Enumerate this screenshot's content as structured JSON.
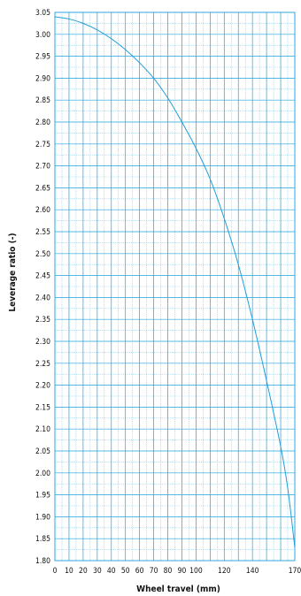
{
  "chart_data": {
    "type": "line",
    "xlabel": "Wheel travel (mm)",
    "ylabel": "Leverage ratio (-)",
    "xlim": [
      0,
      170
    ],
    "ylim": [
      1.8,
      3.05
    ],
    "x_ticks": [
      0,
      10,
      20,
      30,
      40,
      50,
      60,
      70,
      80,
      90,
      100,
      120,
      140,
      170
    ],
    "x_tick_labels": [
      "0",
      "10",
      "20",
      "30",
      "40",
      "50",
      "60",
      "70",
      "80",
      "90",
      "100",
      "120",
      "140",
      "170"
    ],
    "y_ticks": [
      1.8,
      1.85,
      1.9,
      1.95,
      2.0,
      2.05,
      2.1,
      2.15,
      2.2,
      2.25,
      2.3,
      2.35,
      2.4,
      2.45,
      2.5,
      2.55,
      2.6,
      2.65,
      2.7,
      2.75,
      2.8,
      2.85,
      2.9,
      2.95,
      3.0,
      3.05
    ],
    "y_tick_labels": [
      "1.80",
      "1.85",
      "1.90",
      "1.95",
      "2.00",
      "2.05",
      "2.10",
      "2.15",
      "2.20",
      "2.25",
      "2.30",
      "2.35",
      "2.40",
      "2.45",
      "2.50",
      "2.55",
      "2.60",
      "2.65",
      "2.70",
      "2.75",
      "2.80",
      "2.85",
      "2.90",
      "2.95",
      "3.00",
      "3.05"
    ],
    "grid": true,
    "series": [
      {
        "x": [
          0,
          10,
          20,
          30,
          40,
          50,
          60,
          70,
          80,
          90,
          100,
          110,
          120,
          130,
          140,
          150,
          160,
          165,
          170
        ],
        "y": [
          3.04,
          3.035,
          3.025,
          3.01,
          2.99,
          2.965,
          2.935,
          2.9,
          2.855,
          2.8,
          2.74,
          2.67,
          2.58,
          2.475,
          2.35,
          2.21,
          2.06,
          1.965,
          1.83
        ]
      }
    ],
    "colors": {
      "line": "#1f9fd8",
      "grid_major": "#2aa6dc",
      "grid_minor": "#6cc4ea",
      "frame": "#2aa6dc"
    }
  }
}
